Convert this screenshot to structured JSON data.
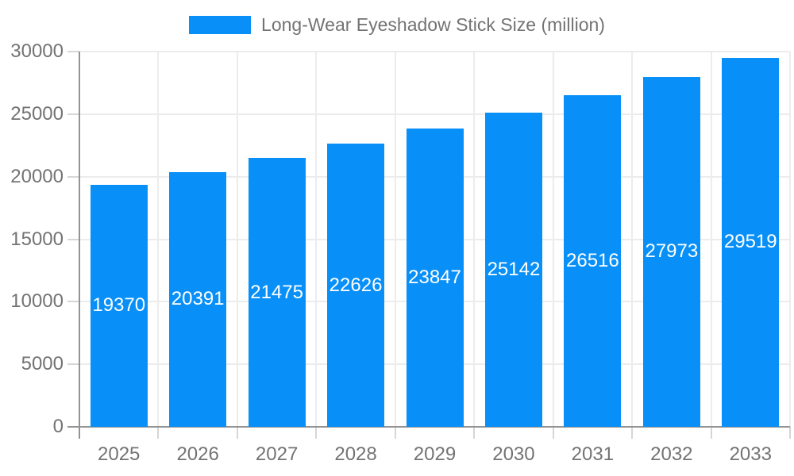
{
  "chart_data": {
    "type": "bar",
    "title": "Long-Wear Eyeshadow Stick Size (million)",
    "categories": [
      "2025",
      "2026",
      "2027",
      "2028",
      "2029",
      "2030",
      "2031",
      "2032",
      "2033"
    ],
    "values": [
      19370,
      20391,
      21475,
      22626,
      23847,
      25142,
      26516,
      27973,
      29519
    ],
    "xlabel": "",
    "ylabel": "",
    "ylim": [
      0,
      30000
    ],
    "ytick_step": 5000,
    "y_tick_labels": [
      "0",
      "5000",
      "10000",
      "15000",
      "20000",
      "25000",
      "30000"
    ],
    "grid": "horizontal and vertical light gridlines",
    "legend_position": "top-center",
    "value_labels": "white, centered inside bars",
    "colors": {
      "bar": "#0890F8",
      "bar_value_text": "#ffffff",
      "axis_text": "#737373",
      "legend_text": "#737373",
      "gridline": "#ECECEC",
      "tick": "#D6D6D6",
      "axis_line": "#939393",
      "background": "#ffffff"
    }
  }
}
